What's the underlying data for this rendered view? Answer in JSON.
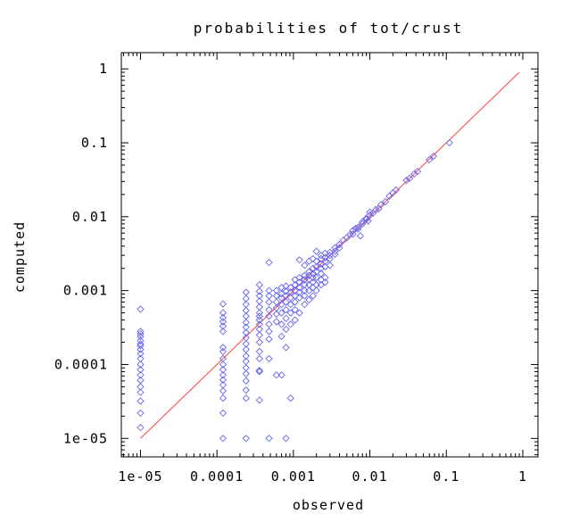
{
  "chart_data": {
    "type": "scatter",
    "title": "probabilities of tot/crust",
    "xlabel": "observed",
    "ylabel": "computed",
    "xscale": "log",
    "yscale": "log",
    "xlim": [
      5.62e-06,
      1.58
    ],
    "ylim": [
      5.62e-06,
      1.66
    ],
    "xticks": [
      {
        "value": 1e-05,
        "label": "1e-05"
      },
      {
        "value": 0.0001,
        "label": "0.0001"
      },
      {
        "value": 0.001,
        "label": "0.001"
      },
      {
        "value": 0.01,
        "label": "0.01"
      },
      {
        "value": 0.1,
        "label": "0.1"
      },
      {
        "value": 1,
        "label": "1"
      }
    ],
    "yticks": [
      {
        "value": 1e-05,
        "label": "1e-05"
      },
      {
        "value": 0.0001,
        "label": "0.0001"
      },
      {
        "value": 0.001,
        "label": "0.001"
      },
      {
        "value": 0.01,
        "label": "0.01"
      },
      {
        "value": 0.1,
        "label": "0.1"
      },
      {
        "value": 1,
        "label": "1"
      }
    ],
    "grid": false,
    "marker_color": "#6666ee",
    "line_color": "#ff4040",
    "reference_line": {
      "x": [
        1e-05,
        0.9
      ],
      "y": [
        1e-05,
        0.9
      ]
    },
    "series": [
      {
        "marker": "diamond",
        "points": [
          [
            1e-05,
            0.00056
          ],
          [
            1e-05,
            0.00028
          ],
          [
            1e-05,
            0.00026
          ],
          [
            1e-05,
            0.00024
          ],
          [
            1e-05,
            0.00021
          ],
          [
            1e-05,
            0.00019
          ],
          [
            1e-05,
            0.00018
          ],
          [
            1e-05,
            0.00016
          ],
          [
            1e-05,
            0.00014
          ],
          [
            1e-05,
            0.00012
          ],
          [
            1e-05,
            0.0001
          ],
          [
            1e-05,
            8.5e-05
          ],
          [
            1e-05,
            7.2e-05
          ],
          [
            1e-05,
            6.1e-05
          ],
          [
            1e-05,
            5e-05
          ],
          [
            1e-05,
            4.2e-05
          ],
          [
            1e-05,
            3.2e-05
          ],
          [
            1e-05,
            2.2e-05
          ],
          [
            1e-05,
            1.4e-05
          ],
          [
            0.00012,
            0.00066
          ],
          [
            0.00012,
            0.0005
          ],
          [
            0.00012,
            0.00043
          ],
          [
            0.00012,
            0.00038
          ],
          [
            0.00012,
            0.00033
          ],
          [
            0.00012,
            0.00028
          ],
          [
            0.00012,
            0.00017
          ],
          [
            0.00012,
            0.00015
          ],
          [
            0.00012,
            0.00012
          ],
          [
            0.00012,
            0.0001
          ],
          [
            0.00012,
            8.5e-05
          ],
          [
            0.00012,
            7.2e-05
          ],
          [
            0.00012,
            6.2e-05
          ],
          [
            0.00012,
            5.3e-05
          ],
          [
            0.00012,
            4.4e-05
          ],
          [
            0.00012,
            3.5e-05
          ],
          [
            0.00012,
            2.2e-05
          ],
          [
            0.00012,
            1e-05
          ],
          [
            0.00024,
            0.00095
          ],
          [
            0.00024,
            0.00078
          ],
          [
            0.00024,
            0.00065
          ],
          [
            0.00024,
            0.00054
          ],
          [
            0.00024,
            0.00045
          ],
          [
            0.00024,
            0.00037
          ],
          [
            0.00024,
            0.00032
          ],
          [
            0.00024,
            0.00027
          ],
          [
            0.00024,
            0.00023
          ],
          [
            0.00024,
            0.00019
          ],
          [
            0.00024,
            0.00016
          ],
          [
            0.00024,
            0.00013
          ],
          [
            0.00024,
            0.00011
          ],
          [
            0.00024,
            9e-05
          ],
          [
            0.00024,
            7.5e-05
          ],
          [
            0.00024,
            6e-05
          ],
          [
            0.00024,
            4.5e-05
          ],
          [
            0.00024,
            3.5e-05
          ],
          [
            0.00024,
            1e-05
          ],
          [
            0.00036,
            0.0012
          ],
          [
            0.00036,
            0.00098
          ],
          [
            0.00036,
            0.00085
          ],
          [
            0.00036,
            0.00072
          ],
          [
            0.00036,
            0.0006
          ],
          [
            0.00036,
            0.0005
          ],
          [
            0.00036,
            0.00045
          ],
          [
            0.00036,
            0.0004
          ],
          [
            0.00036,
            0.00035
          ],
          [
            0.00036,
            0.0003
          ],
          [
            0.00036,
            0.00025
          ],
          [
            0.00036,
            0.0002
          ],
          [
            0.00036,
            0.00015
          ],
          [
            0.00036,
            0.00012
          ],
          [
            0.00036,
            8e-05
          ],
          [
            0.00036,
            3.3e-05
          ],
          [
            0.00036,
            8.3e-05
          ],
          [
            0.00048,
            0.0024
          ],
          [
            0.00048,
            0.001
          ],
          [
            0.00048,
            0.00085
          ],
          [
            0.00048,
            0.0007
          ],
          [
            0.00048,
            0.00055
          ],
          [
            0.00048,
            0.00045
          ],
          [
            0.00048,
            0.00035
          ],
          [
            0.00048,
            0.00028
          ],
          [
            0.00048,
            0.00022
          ],
          [
            0.00048,
            0.00012
          ],
          [
            0.00048,
            1e-05
          ],
          [
            0.0006,
            0.001
          ],
          [
            0.0006,
            0.00085
          ],
          [
            0.0006,
            0.0007
          ],
          [
            0.0006,
            0.00058
          ],
          [
            0.0006,
            0.00048
          ],
          [
            0.0006,
            0.00038
          ],
          [
            0.0006,
            7.2e-05
          ],
          [
            0.0007,
            0.0011
          ],
          [
            0.0007,
            0.0009
          ],
          [
            0.0007,
            0.0008
          ],
          [
            0.0007,
            0.00065
          ],
          [
            0.0007,
            0.0005
          ],
          [
            0.0007,
            0.00035
          ],
          [
            0.0007,
            0.00024
          ],
          [
            0.0007,
            7.2e-05
          ],
          [
            0.0008,
            0.00115
          ],
          [
            0.0008,
            0.00098
          ],
          [
            0.0008,
            0.00085
          ],
          [
            0.0008,
            0.0007
          ],
          [
            0.0008,
            0.00055
          ],
          [
            0.0008,
            0.00042
          ],
          [
            0.0008,
            0.0003
          ],
          [
            0.0008,
            0.00017
          ],
          [
            0.0008,
            1e-05
          ],
          [
            0.00092,
            0.0011
          ],
          [
            0.00092,
            0.00095
          ],
          [
            0.00092,
            0.0008
          ],
          [
            0.00092,
            0.00065
          ],
          [
            0.00092,
            0.0005
          ],
          [
            0.00092,
            0.00035
          ],
          [
            0.00092,
            3.5e-05
          ],
          [
            0.00105,
            0.0014
          ],
          [
            0.00105,
            0.0012
          ],
          [
            0.00105,
            0.001
          ],
          [
            0.00105,
            0.00085
          ],
          [
            0.00105,
            0.0007
          ],
          [
            0.00105,
            0.00055
          ],
          [
            0.00105,
            0.0004
          ],
          [
            0.0012,
            0.0026
          ],
          [
            0.0012,
            0.0015
          ],
          [
            0.0012,
            0.0013
          ],
          [
            0.0012,
            0.0011
          ],
          [
            0.0012,
            0.00095
          ],
          [
            0.0012,
            0.0008
          ],
          [
            0.0012,
            0.0005
          ],
          [
            0.0014,
            0.0022
          ],
          [
            0.0014,
            0.0016
          ],
          [
            0.0014,
            0.0014
          ],
          [
            0.0014,
            0.0012
          ],
          [
            0.0014,
            0.001
          ],
          [
            0.0014,
            0.00085
          ],
          [
            0.0014,
            0.00065
          ],
          [
            0.0016,
            0.0025
          ],
          [
            0.0016,
            0.0018
          ],
          [
            0.0016,
            0.0016
          ],
          [
            0.0016,
            0.0014
          ],
          [
            0.0016,
            0.0012
          ],
          [
            0.0016,
            0.001
          ],
          [
            0.0016,
            0.00075
          ],
          [
            0.0018,
            0.0027
          ],
          [
            0.0018,
            0.002
          ],
          [
            0.0018,
            0.0017
          ],
          [
            0.0018,
            0.0015
          ],
          [
            0.0018,
            0.0013
          ],
          [
            0.0018,
            0.0011
          ],
          [
            0.0018,
            0.00085
          ],
          [
            0.002,
            0.0034
          ],
          [
            0.002,
            0.0025
          ],
          [
            0.002,
            0.0021
          ],
          [
            0.002,
            0.0018
          ],
          [
            0.002,
            0.0015
          ],
          [
            0.002,
            0.0012
          ],
          [
            0.002,
            0.001
          ],
          [
            0.0023,
            0.003
          ],
          [
            0.0023,
            0.0027
          ],
          [
            0.0023,
            0.0023
          ],
          [
            0.0023,
            0.002
          ],
          [
            0.0023,
            0.0017
          ],
          [
            0.0023,
            0.0014
          ],
          [
            0.0023,
            0.0012
          ],
          [
            0.0026,
            0.0032
          ],
          [
            0.0026,
            0.0028
          ],
          [
            0.0026,
            0.0025
          ],
          [
            0.0026,
            0.0021
          ],
          [
            0.0026,
            0.0015
          ],
          [
            0.0026,
            0.0013
          ],
          [
            0.003,
            0.0033
          ],
          [
            0.003,
            0.003
          ],
          [
            0.003,
            0.0027
          ],
          [
            0.003,
            0.0022
          ],
          [
            0.0035,
            0.0038
          ],
          [
            0.0035,
            0.0034
          ],
          [
            0.0035,
            0.0031
          ],
          [
            0.004,
            0.0042
          ],
          [
            0.004,
            0.0038
          ],
          [
            0.0045,
            0.0048
          ],
          [
            0.005,
            0.0052
          ],
          [
            0.0055,
            0.0057
          ],
          [
            0.006,
            0.0058
          ],
          [
            0.006,
            0.0065
          ],
          [
            0.0065,
            0.0069
          ],
          [
            0.007,
            0.0072
          ],
          [
            0.007,
            0.0068
          ],
          [
            0.0075,
            0.0055
          ],
          [
            0.008,
            0.0085
          ],
          [
            0.008,
            0.008
          ],
          [
            0.009,
            0.0092
          ],
          [
            0.009,
            0.0095
          ],
          [
            0.0095,
            0.0088
          ],
          [
            0.01,
            0.0105
          ],
          [
            0.01,
            0.0115
          ],
          [
            0.011,
            0.0112
          ],
          [
            0.012,
            0.0125
          ],
          [
            0.013,
            0.0128
          ],
          [
            0.014,
            0.0145
          ],
          [
            0.016,
            0.016
          ],
          [
            0.018,
            0.019
          ],
          [
            0.02,
            0.021
          ],
          [
            0.022,
            0.023
          ],
          [
            0.03,
            0.031
          ],
          [
            0.033,
            0.033
          ],
          [
            0.038,
            0.038
          ],
          [
            0.042,
            0.041
          ],
          [
            0.06,
            0.059
          ],
          [
            0.068,
            0.066
          ],
          [
            0.11,
            0.1
          ]
        ]
      }
    ]
  }
}
